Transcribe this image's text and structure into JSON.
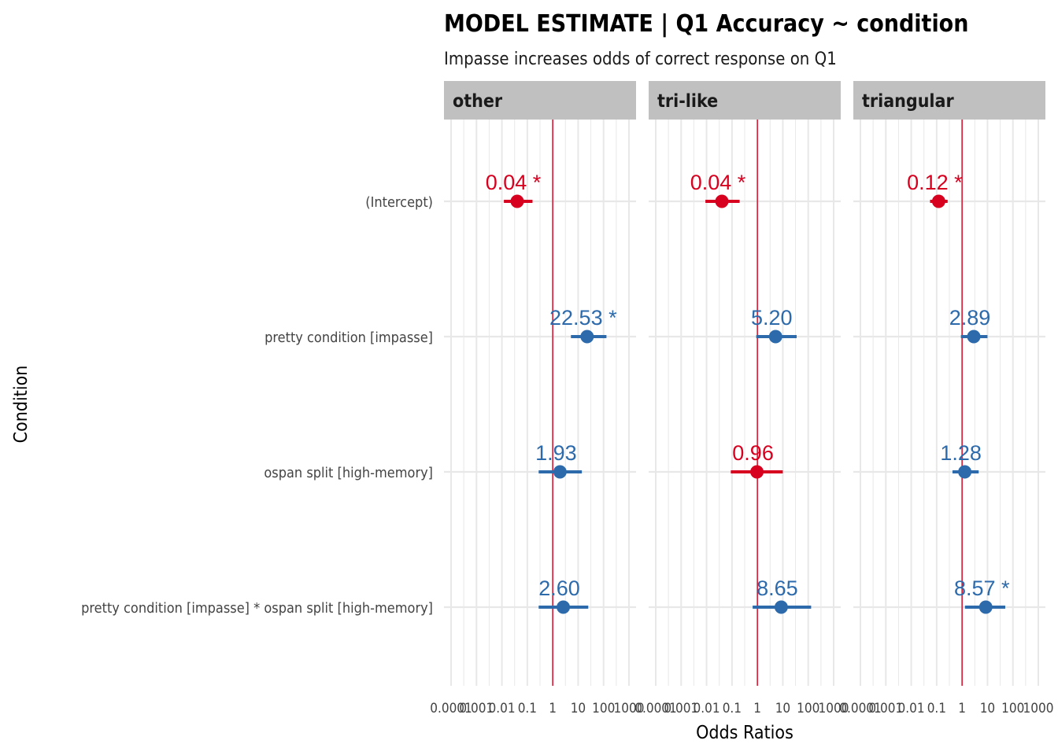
{
  "chart_data": {
    "type": "forest",
    "title": "MODEL ESTIMATE  | Q1 Accuracy ~ condition",
    "subtitle": "Impasse increases odds of correct response on Q1",
    "xlabel": "Odds Ratios",
    "ylabel": "Condition",
    "x_scale": "log10",
    "xlim": [
      0.0001,
      1000
    ],
    "x_ticks": [
      0.0001,
      0.001,
      0.01,
      0.1,
      1,
      10,
      100,
      1000
    ],
    "x_tick_labels": [
      "0.0001",
      "0.001",
      "0.01",
      "0.1",
      "1",
      "10",
      "100",
      "1000"
    ],
    "reference_line": 1,
    "grid": true,
    "colors": {
      "positive": "#2c6aab",
      "negative": "#d7001f",
      "reference": "#d7001f",
      "strip": "#c0c0c0",
      "grid": "#e8e8e8"
    },
    "terms": [
      "(Intercept)",
      "pretty condition [impasse]",
      "ospan split [high-memory]",
      "pretty condition [impasse] * ospan split [high-memory]"
    ],
    "panels": [
      {
        "name": "other",
        "estimates": [
          {
            "term": "(Intercept)",
            "estimate": 0.04,
            "ci_low": 0.012,
            "ci_high": 0.16,
            "label": "0.04 *",
            "direction": "negative"
          },
          {
            "term": "pretty condition [impasse]",
            "estimate": 22.53,
            "ci_low": 5.2,
            "ci_high": 130,
            "label": "22.53 *",
            "direction": "positive"
          },
          {
            "term": "ospan split [high-memory]",
            "estimate": 1.93,
            "ci_low": 0.28,
            "ci_high": 14,
            "label": "1.93",
            "direction": "positive"
          },
          {
            "term": "pretty condition [impasse] * ospan split [high-memory]",
            "estimate": 2.6,
            "ci_low": 0.28,
            "ci_high": 25,
            "label": "2.60",
            "direction": "positive"
          }
        ]
      },
      {
        "name": "tri-like",
        "estimates": [
          {
            "term": "(Intercept)",
            "estimate": 0.04,
            "ci_low": 0.009,
            "ci_high": 0.2,
            "label": "0.04 *",
            "direction": "negative"
          },
          {
            "term": "pretty condition [impasse]",
            "estimate": 5.2,
            "ci_low": 0.9,
            "ci_high": 35,
            "label": "5.20",
            "direction": "positive"
          },
          {
            "term": "ospan split [high-memory]",
            "estimate": 0.96,
            "ci_low": 0.09,
            "ci_high": 10,
            "label": "0.96",
            "direction": "negative"
          },
          {
            "term": "pretty condition [impasse] * ospan split [high-memory]",
            "estimate": 8.65,
            "ci_low": 0.65,
            "ci_high": 130,
            "label": "8.65",
            "direction": "positive"
          }
        ]
      },
      {
        "name": "triangular",
        "estimates": [
          {
            "term": "(Intercept)",
            "estimate": 0.12,
            "ci_low": 0.055,
            "ci_high": 0.27,
            "label": "0.12 *",
            "direction": "negative"
          },
          {
            "term": "pretty condition [impasse]",
            "estimate": 2.89,
            "ci_low": 0.9,
            "ci_high": 10,
            "label": "2.89",
            "direction": "positive"
          },
          {
            "term": "ospan split [high-memory]",
            "estimate": 1.28,
            "ci_low": 0.42,
            "ci_high": 4.5,
            "label": "1.28",
            "direction": "positive"
          },
          {
            "term": "pretty condition [impasse] * ospan split [high-memory]",
            "estimate": 8.57,
            "ci_low": 1.3,
            "ci_high": 50,
            "label": "8.57 *",
            "direction": "positive"
          }
        ]
      }
    ]
  }
}
